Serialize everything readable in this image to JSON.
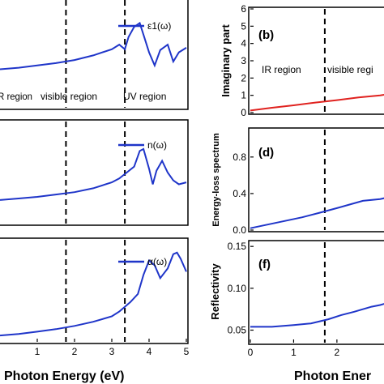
{
  "chart_data": [
    {
      "id": "a",
      "type": "line",
      "panel_label": "",
      "xlim": [
        0,
        5
      ],
      "show_x_ticks": false,
      "y_ticks": [],
      "vlines": [
        1.77,
        3.35
      ],
      "regions": [
        "IR region",
        "visible region",
        "UV region"
      ],
      "series": [
        {
          "name": "ε1(ω)",
          "color": "#1f35c9",
          "x": [
            0,
            0.5,
            1,
            1.5,
            2,
            2.5,
            3,
            3.2,
            3.35,
            3.45,
            3.6,
            3.75,
            3.85,
            4.0,
            4.15,
            4.3,
            4.5,
            4.65,
            4.8,
            5.0
          ],
          "y": [
            0.5,
            0.52,
            0.55,
            0.58,
            0.62,
            0.68,
            0.76,
            0.82,
            0.76,
            0.92,
            1.05,
            1.1,
            0.95,
            0.72,
            0.55,
            0.75,
            0.82,
            0.6,
            0.72,
            0.78
          ]
        }
      ],
      "ylim": [
        0,
        1.4
      ]
    },
    {
      "id": "c",
      "type": "line",
      "panel_label": "",
      "xlim": [
        0,
        5
      ],
      "show_x_ticks": false,
      "y_ticks": [],
      "vlines": [
        1.77,
        3.35
      ],
      "series": [
        {
          "name": "n(ω)",
          "color": "#1f35c9",
          "x": [
            0,
            0.5,
            1,
            1.5,
            2,
            2.5,
            3,
            3.2,
            3.4,
            3.6,
            3.75,
            3.85,
            4.0,
            4.1,
            4.2,
            4.35,
            4.5,
            4.65,
            4.8,
            5.0
          ],
          "y": [
            0.6,
            0.64,
            0.68,
            0.74,
            0.8,
            0.9,
            1.05,
            1.15,
            1.3,
            1.45,
            1.85,
            1.9,
            1.4,
            1.0,
            1.35,
            1.6,
            1.3,
            1.1,
            1.0,
            1.05
          ]
        }
      ],
      "ylim": [
        0,
        2.6
      ]
    },
    {
      "id": "e",
      "type": "line",
      "panel_label": "",
      "xlim": [
        0,
        5
      ],
      "x_ticks": [
        1,
        2,
        3,
        4,
        5
      ],
      "show_x_ticks": true,
      "y_ticks": [],
      "vlines": [
        1.77,
        3.35
      ],
      "series": [
        {
          "name": "α(ω)",
          "color": "#1f35c9",
          "x": [
            0,
            0.5,
            1,
            1.5,
            2,
            2.5,
            3,
            3.2,
            3.35,
            3.5,
            3.7,
            3.85,
            4.0,
            4.15,
            4.3,
            4.5,
            4.65,
            4.75,
            4.85,
            5.0
          ],
          "y": [
            0.2,
            0.25,
            0.32,
            0.4,
            0.5,
            0.63,
            0.8,
            0.95,
            1.1,
            1.25,
            1.5,
            2.1,
            2.55,
            2.4,
            2.0,
            2.3,
            2.75,
            2.8,
            2.6,
            2.2
          ]
        }
      ],
      "ylim": [
        0,
        3.2
      ]
    },
    {
      "id": "b",
      "type": "line",
      "panel_label": "(b)",
      "ylabel": "Imaginary part",
      "xlim": [
        0,
        3.2
      ],
      "ylim": [
        0,
        6
      ],
      "y_ticks": [
        0,
        1,
        2,
        3,
        4,
        5,
        6
      ],
      "show_x_ticks": false,
      "vlines": [
        1.72
      ],
      "regions": [
        "IR region",
        "visible regi"
      ],
      "series": [
        {
          "name": "",
          "color": "#e0221f",
          "x": [
            0,
            0.5,
            1.0,
            1.5,
            2.0,
            2.5,
            3.0,
            3.2
          ],
          "y": [
            0.12,
            0.28,
            0.42,
            0.58,
            0.72,
            0.88,
            1.0,
            1.08
          ]
        }
      ]
    },
    {
      "id": "d",
      "type": "line",
      "panel_label": "(d)",
      "ylabel": "Energy-loss spectrum",
      "xlim": [
        0,
        3.2
      ],
      "ylim": [
        0,
        1.1
      ],
      "y_ticks": [
        0.0,
        0.4,
        0.8
      ],
      "y_tick_labels": [
        "0.0",
        "0.4",
        "0.8"
      ],
      "show_x_ticks": false,
      "vlines": [
        1.72
      ],
      "series": [
        {
          "name": "",
          "color": "#1f35c9",
          "x": [
            0,
            0.4,
            0.8,
            1.2,
            1.6,
            2.0,
            2.3,
            2.6,
            3.0,
            3.2
          ],
          "y": [
            0.02,
            0.06,
            0.1,
            0.14,
            0.19,
            0.24,
            0.28,
            0.32,
            0.34,
            0.36
          ]
        }
      ]
    },
    {
      "id": "f",
      "type": "line",
      "panel_label": "(f)",
      "ylabel": "Reflectivity",
      "xlim": [
        0,
        3.2
      ],
      "ylim": [
        0.035,
        0.155
      ],
      "y_ticks": [
        0.05,
        0.1,
        0.15
      ],
      "y_tick_labels": [
        "0.05",
        "0.10",
        "0.15"
      ],
      "x_ticks": [
        0,
        1,
        2
      ],
      "show_x_ticks": true,
      "vlines": [
        1.72
      ],
      "series": [
        {
          "name": "",
          "color": "#1f35c9",
          "x": [
            0,
            0.5,
            1.0,
            1.4,
            1.8,
            2.1,
            2.4,
            2.6,
            2.8,
            3.0,
            3.2
          ],
          "y": [
            0.054,
            0.054,
            0.056,
            0.058,
            0.063,
            0.068,
            0.072,
            0.075,
            0.078,
            0.08,
            0.083
          ]
        }
      ]
    }
  ],
  "x_axis_left": "Photon Energy (eV)",
  "x_axis_right": "Photon Ener"
}
